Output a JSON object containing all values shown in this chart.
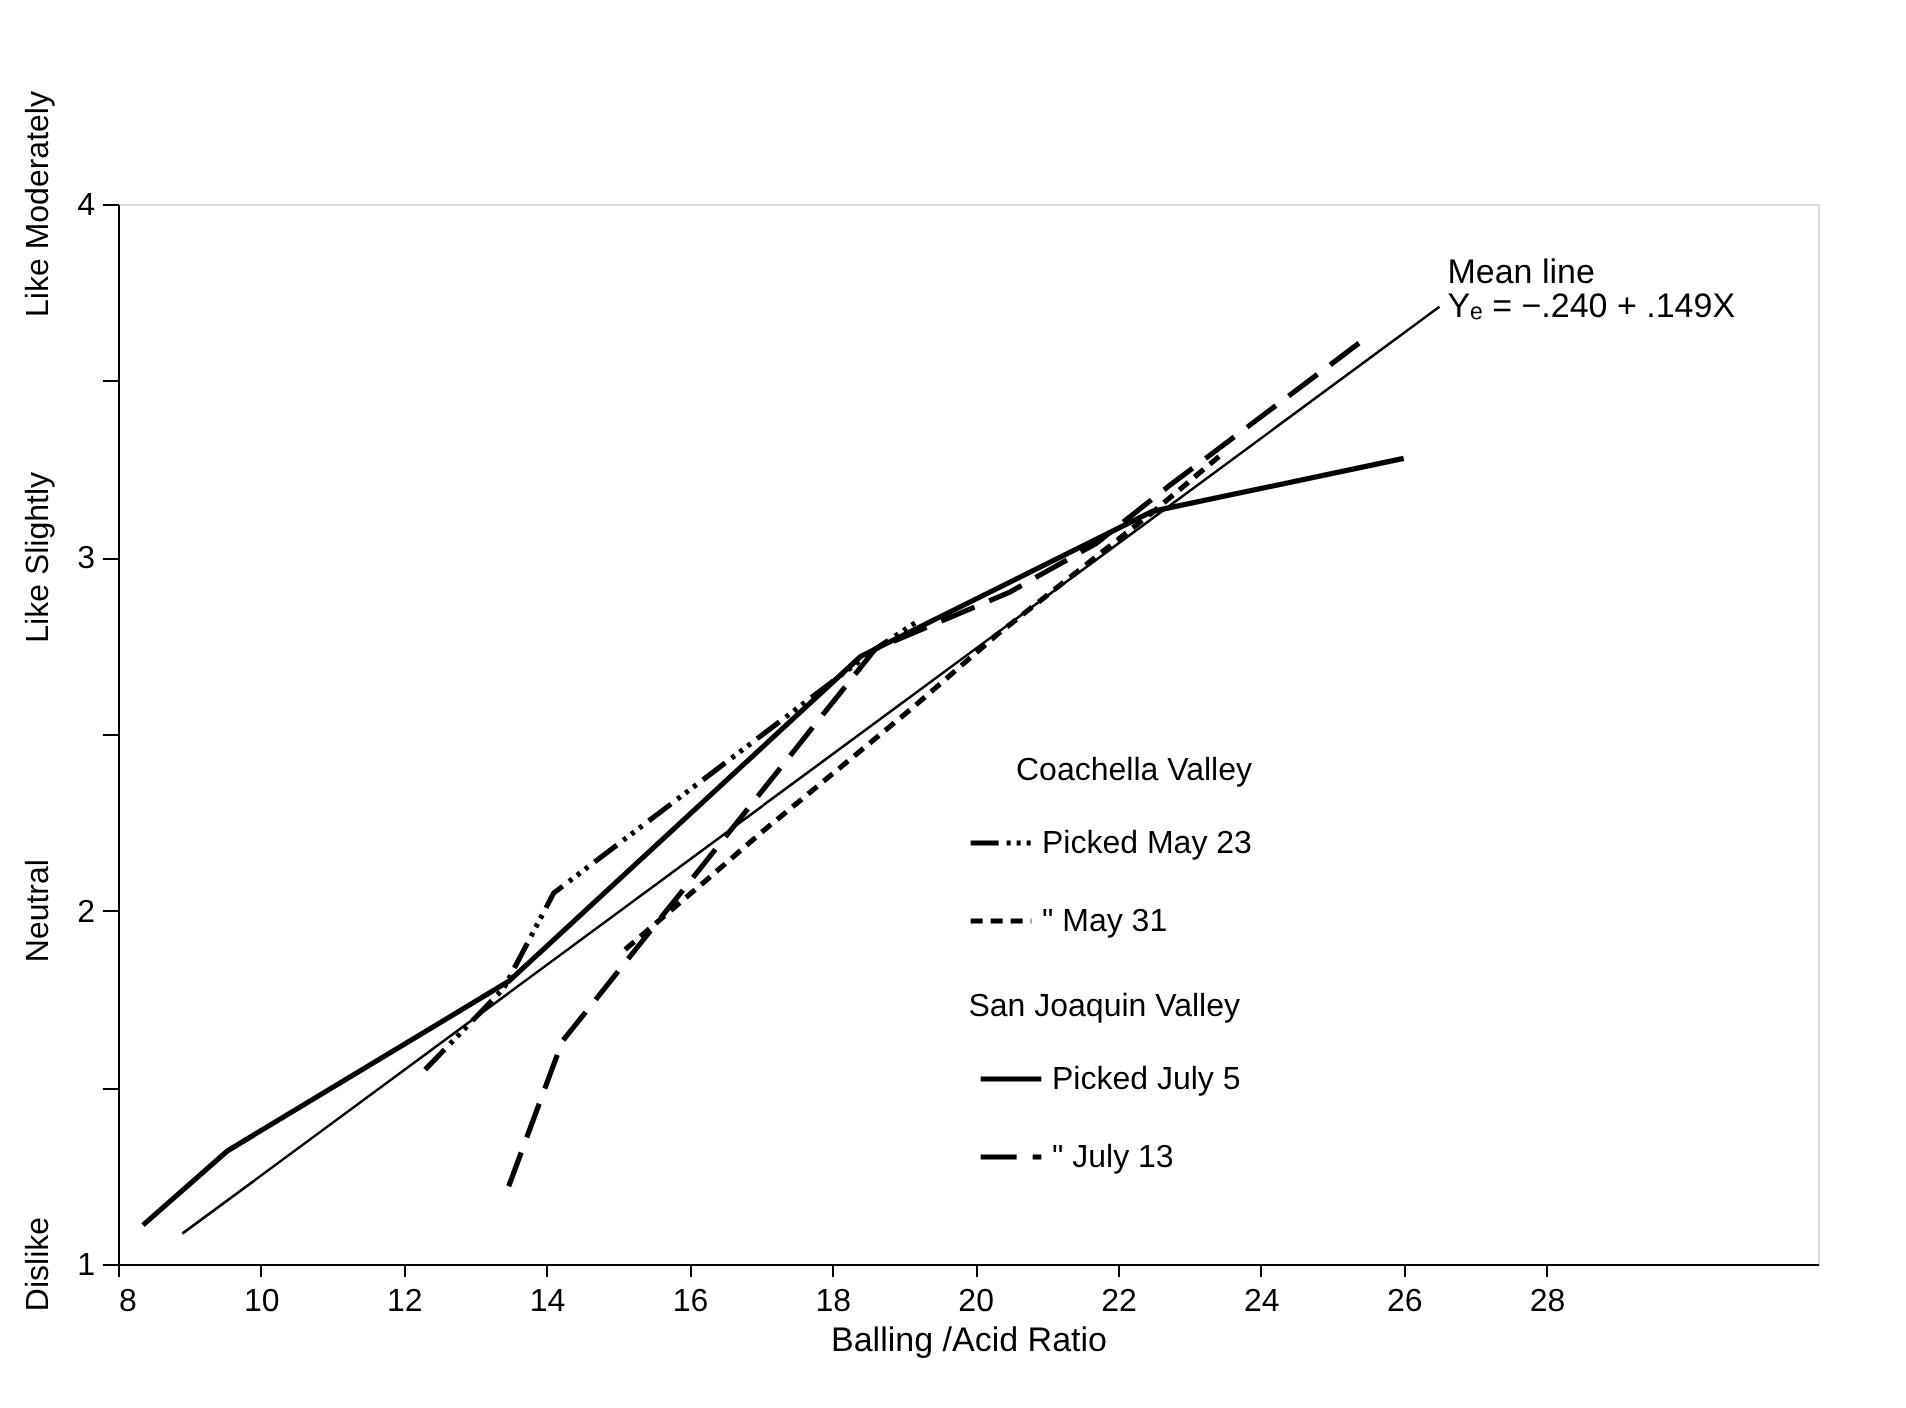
{
  "chart_data": {
    "type": "line",
    "xlabel": "Balling /Acid Ratio",
    "xlim": [
      8,
      31.8
    ],
    "xticks": [
      8,
      10,
      12,
      14,
      16,
      18,
      20,
      22,
      24,
      26,
      28
    ],
    "ylim": [
      1,
      4
    ],
    "yticks": [
      1,
      {
        "value": 1.5,
        "label": null
      },
      2,
      {
        "value": 2.5,
        "label": null
      },
      3,
      {
        "value": 3.5,
        "label": null
      },
      4
    ],
    "legend_title": [
      "Coachella Valley",
      "San Joaquin Valley"
    ],
    "legend": "right",
    "grid": false,
    "marker": "none",
    "series": [
      {
        "name": "Picked May 23",
        "color": "#000000",
        "line_style": "dashdotdot",
        "x": [
          12.3,
          13.4,
          14.1,
          18.6,
          19.2
        ],
        "values": [
          1.55,
          1.78,
          2.05,
          2.74,
          2.82
        ]
      },
      {
        "name": "\"   May 31",
        "color": "#000000",
        "line_style": "dotted",
        "x": [
          15.1,
          16.2,
          17.0,
          19.1,
          20.3,
          22.5,
          23.5
        ],
        "values": [
          1.89,
          2.08,
          2.22,
          2.57,
          2.78,
          3.13,
          3.3
        ]
      },
      {
        "name": "Picked July 5",
        "color": "#000000",
        "line_style": "solid",
        "x": [
          8.35,
          9.53,
          13.47,
          18.4,
          22.48,
          26.0
        ],
        "values": [
          1.11,
          1.32,
          1.8,
          2.72,
          3.13,
          3.28
        ]
      },
      {
        "name": "\"   July 13",
        "color": "#000000",
        "line_style": "dashed",
        "x": [
          13.47,
          14.22,
          18.6,
          20.47,
          21.7,
          22.7,
          25.4
        ],
        "values": [
          1.22,
          1.63,
          2.74,
          2.9,
          3.04,
          3.2,
          3.61
        ]
      },
      {
        "name": "Mean line",
        "color": "#000000",
        "type": "line",
        "x": [
          8.9,
          26.5
        ],
        "values": [
          1.086,
          3.709
        ]
      }
    ],
    "annotations": [
      {
        "text": "Yₑ = −.240 + .149X",
        "x": 26.5,
        "y": 3.709
      },
      "Dislike",
      "Neutral",
      "Like Slightly",
      "Like Moderately"
    ]
  }
}
